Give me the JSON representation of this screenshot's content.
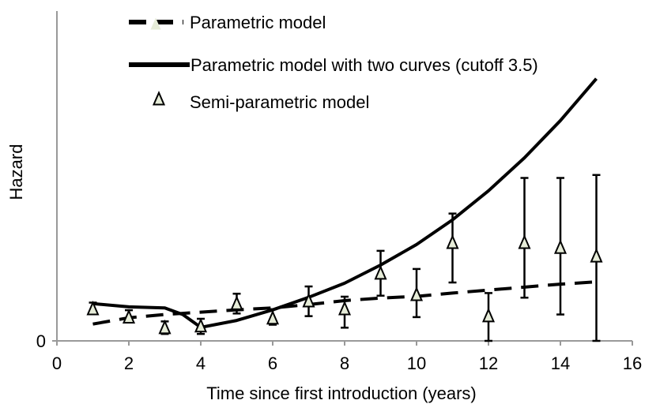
{
  "chart_data": {
    "type": "line",
    "title": "",
    "xlabel": "Time since first introduction (years)",
    "ylabel": "Hazard",
    "xlim": [
      0,
      16
    ],
    "x_ticks": [
      0,
      2,
      4,
      6,
      8,
      10,
      12,
      14,
      16
    ],
    "ylim": [
      0,
      1
    ],
    "y_tick_labels": [
      "0"
    ],
    "grid": false,
    "legend_position": "top-left",
    "series": [
      {
        "name": "Parametric model",
        "style": "dashed",
        "color": "#000000",
        "x": [
          1,
          2,
          3,
          4,
          5,
          6,
          7,
          8,
          9,
          10,
          11,
          12,
          13,
          14,
          15
        ],
        "y": [
          0.051,
          0.07,
          0.08,
          0.087,
          0.094,
          0.1,
          0.11,
          0.122,
          0.13,
          0.135,
          0.145,
          0.154,
          0.163,
          0.172,
          0.179
        ]
      },
      {
        "name": "Parametric model with two curves (cutoff 3.5)",
        "style": "solid",
        "color": "#000000",
        "x": [
          1,
          2,
          3,
          3.5,
          4,
          5,
          6,
          7,
          8,
          9,
          10,
          11,
          12,
          13,
          14,
          15
        ],
        "y": [
          0.113,
          0.103,
          0.1,
          0.08,
          0.041,
          0.062,
          0.094,
          0.132,
          0.175,
          0.23,
          0.292,
          0.367,
          0.455,
          0.555,
          0.668,
          0.795
        ]
      },
      {
        "name": "Semi-parametric model",
        "style": "markers",
        "marker": "triangle",
        "marker_fill": "#e6ecd8",
        "x": [
          1,
          2,
          3,
          4,
          5,
          6,
          7,
          8,
          9,
          10,
          11,
          12,
          13,
          14,
          15
        ],
        "y": [
          0.098,
          0.073,
          0.041,
          0.046,
          0.114,
          0.07,
          0.122,
          0.098,
          0.206,
          0.141,
          0.299,
          0.077,
          0.299,
          0.284,
          0.258
        ],
        "error_low": [
          0.085,
          0.057,
          0.021,
          0.021,
          0.083,
          0.049,
          0.075,
          0.04,
          0.137,
          0.072,
          0.177,
          0.0,
          0.131,
          0.08,
          0.0
        ],
        "error_high": [
          0.116,
          0.093,
          0.059,
          0.067,
          0.143,
          0.096,
          0.165,
          0.134,
          0.273,
          0.218,
          0.386,
          0.145,
          0.494,
          0.494,
          0.503
        ]
      }
    ]
  }
}
